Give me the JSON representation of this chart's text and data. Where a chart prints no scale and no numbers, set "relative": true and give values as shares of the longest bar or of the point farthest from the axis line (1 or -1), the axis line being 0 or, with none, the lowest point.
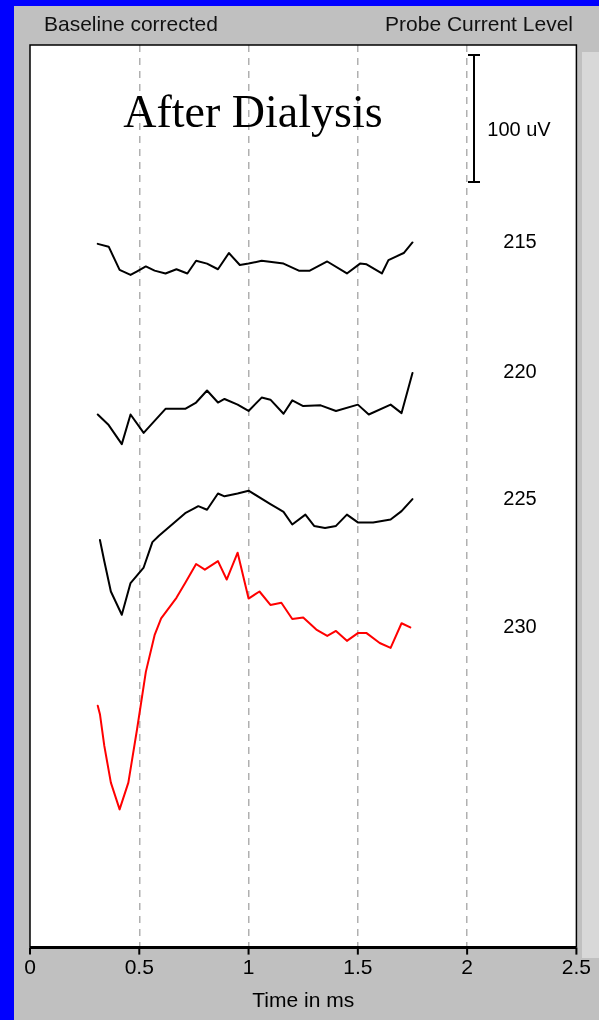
{
  "chart_data": {
    "type": "line",
    "title": "After Dialysis",
    "legend_title": "Probe Current Level",
    "xlabel": "Time in ms",
    "relative": true,
    "grid": "x",
    "legend": false,
    "marker": "none",
    "line_style": "solid",
    "annotations": [
      "Baseline corrected",
      "100 uV"
    ],
    "xlim": [
      0,
      2.5
    ],
    "xticks": [
      0,
      0.5,
      1,
      1.5,
      2,
      2.5
    ],
    "series": [
      {
        "name": "215",
        "color": "#000000",
        "x": [
          0.31,
          0.36,
          0.41,
          0.46,
          0.49,
          0.53,
          0.57,
          0.62,
          0.67,
          0.72,
          0.76,
          0.81,
          0.86,
          0.91,
          0.96,
          1.0,
          1.06,
          1.16,
          1.23,
          1.28,
          1.36,
          1.45,
          1.51,
          1.54,
          1.61,
          1.64,
          1.71,
          1.75
        ],
        "values": [
          0.998,
          0.994,
          0.961,
          0.954,
          0.959,
          0.966,
          0.96,
          0.956,
          0.962,
          0.956,
          0.974,
          0.97,
          0.962,
          0.985,
          0.968,
          0.97,
          0.974,
          0.97,
          0.96,
          0.96,
          0.973,
          0.956,
          0.97,
          0.969,
          0.956,
          0.975,
          0.985,
          1
        ]
      },
      {
        "name": "220",
        "color": "#000000",
        "x": [
          0.31,
          0.36,
          0.42,
          0.46,
          0.52,
          0.62,
          0.71,
          0.76,
          0.81,
          0.86,
          0.89,
          0.95,
          1.0,
          1.06,
          1.1,
          1.16,
          1.2,
          1.25,
          1.33,
          1.4,
          1.5,
          1.55,
          1.65,
          1.7,
          1.75
        ],
        "values": [
          0.756,
          0.741,
          0.714,
          0.756,
          0.73,
          0.764,
          0.764,
          0.773,
          0.79,
          0.773,
          0.778,
          0.77,
          0.761,
          0.78,
          0.777,
          0.757,
          0.776,
          0.768,
          0.769,
          0.761,
          0.77,
          0.756,
          0.77,
          0.758,
          0.815
        ]
      },
      {
        "name": "225",
        "color": "#000000",
        "x": [
          0.32,
          0.34,
          0.37,
          0.42,
          0.46,
          0.52,
          0.56,
          0.59,
          0.71,
          0.77,
          0.81,
          0.86,
          0.89,
          0.95,
          1.0,
          1.1,
          1.16,
          1.2,
          1.26,
          1.3,
          1.35,
          1.4,
          1.45,
          1.5,
          1.57,
          1.65,
          1.7,
          1.75
        ],
        "values": [
          0.578,
          0.548,
          0.505,
          0.472,
          0.517,
          0.539,
          0.575,
          0.584,
          0.616,
          0.626,
          0.621,
          0.644,
          0.64,
          0.644,
          0.648,
          0.629,
          0.618,
          0.6,
          0.614,
          0.598,
          0.595,
          0.598,
          0.614,
          0.603,
          0.603,
          0.607,
          0.619,
          0.636
        ]
      },
      {
        "name": "230",
        "color": "#ff0000",
        "x": [
          0.31,
          0.32,
          0.34,
          0.37,
          0.41,
          0.45,
          0.49,
          0.53,
          0.57,
          0.6,
          0.67,
          0.71,
          0.76,
          0.8,
          0.86,
          0.9,
          0.95,
          1.0,
          1.05,
          1.1,
          1.15,
          1.2,
          1.25,
          1.31,
          1.36,
          1.4,
          1.45,
          1.5,
          1.54,
          1.6,
          1.65,
          1.7,
          1.74
        ],
        "values": [
          0.343,
          0.331,
          0.286,
          0.234,
          0.196,
          0.234,
          0.31,
          0.391,
          0.443,
          0.467,
          0.496,
          0.517,
          0.544,
          0.536,
          0.548,
          0.522,
          0.56,
          0.495,
          0.505,
          0.486,
          0.489,
          0.466,
          0.468,
          0.451,
          0.442,
          0.449,
          0.435,
          0.446,
          0.446,
          0.432,
          0.425,
          0.46,
          0.454
        ]
      }
    ]
  }
}
